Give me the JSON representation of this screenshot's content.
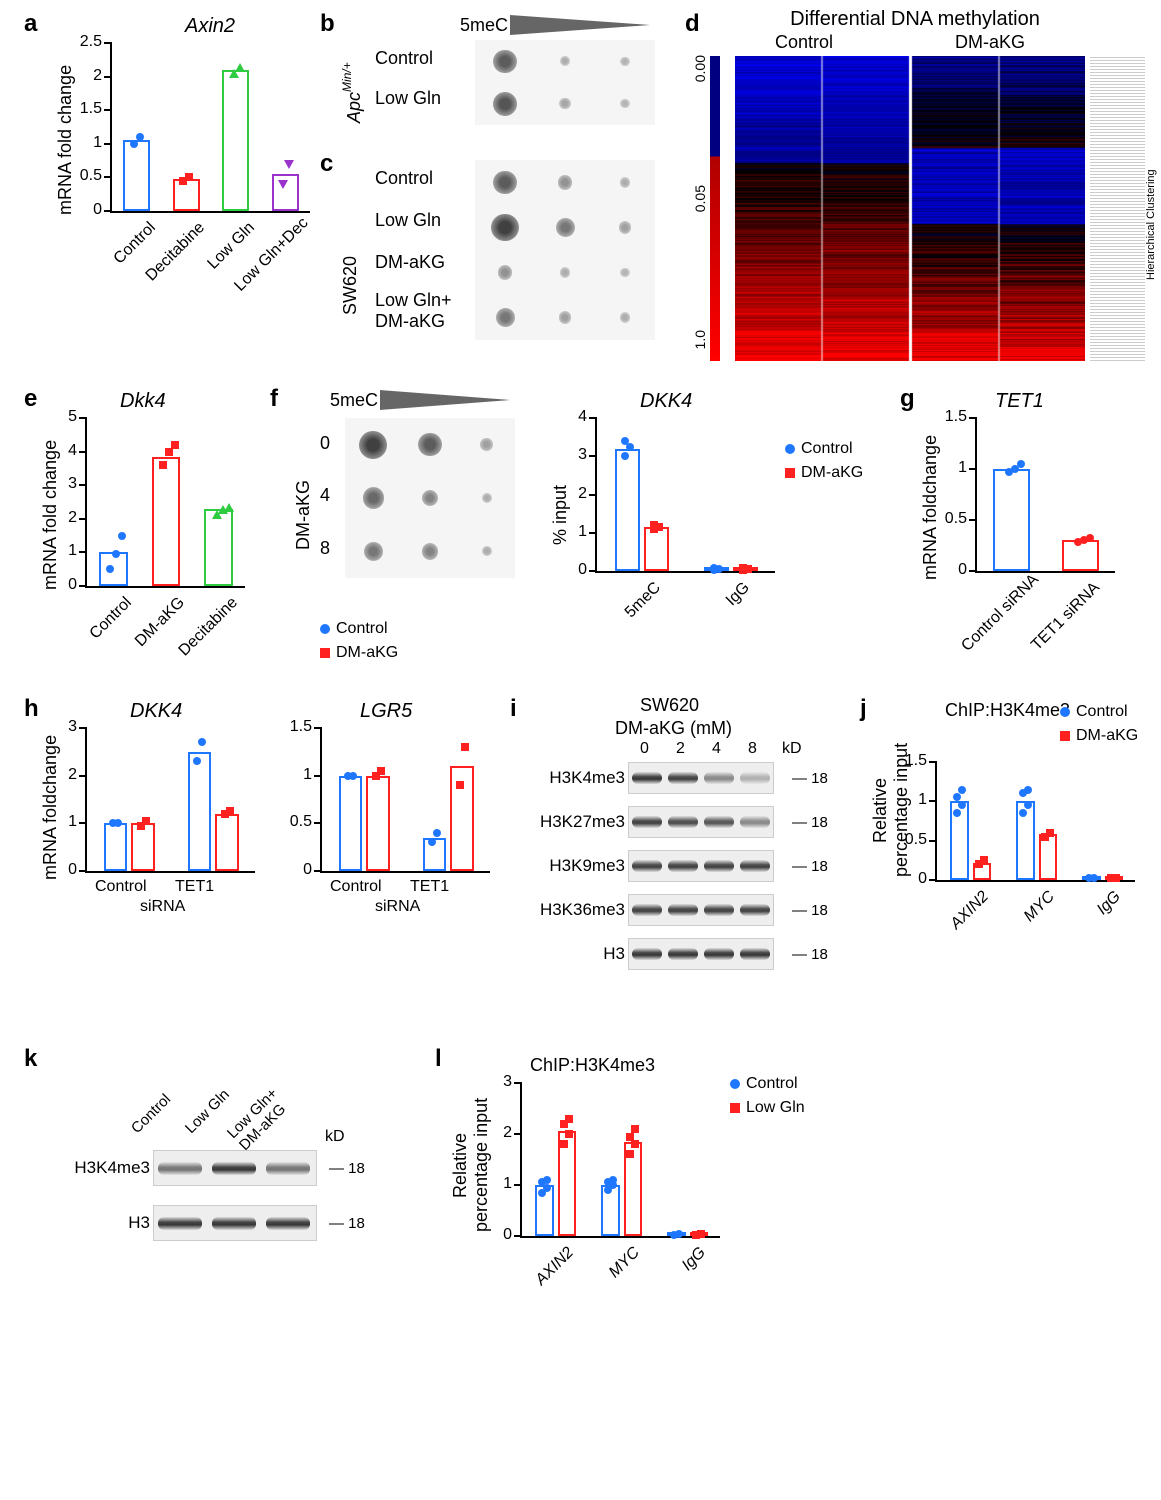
{
  "panels": {
    "a": {
      "label": "a",
      "title": "Axin2",
      "y_label": "mRNA fold change",
      "y_max": 2.5,
      "y_ticks": [
        0.0,
        0.5,
        1.0,
        1.5,
        2.0,
        2.5
      ],
      "categories": [
        "Control",
        "Decitabine",
        "Low Gln",
        "Low Gln+Dec"
      ],
      "values": [
        1.05,
        0.48,
        2.1,
        0.55
      ],
      "colors": [
        "#1f77ff",
        "#ff2020",
        "#2ecc40",
        "#9933cc"
      ],
      "data_points": [
        [
          1.0,
          1.1
        ],
        [
          0.45,
          0.5
        ],
        [
          2.05,
          2.15
        ],
        [
          0.4,
          0.7
        ]
      ],
      "point_shapes": [
        "circle",
        "square",
        "triangle",
        "triangle-down"
      ]
    },
    "b": {
      "label": "b",
      "header": "5meC",
      "row_labels": [
        "Control",
        "Low Gln"
      ],
      "side_label": "Apc^Min/+",
      "dot_intensities": [
        [
          0.7,
          0.1,
          0.05
        ],
        [
          0.75,
          0.15,
          0.05
        ]
      ]
    },
    "c": {
      "label": "c",
      "row_labels": [
        "Control",
        "Low Gln",
        "DM-aKG",
        "Low Gln+\nDM-aKG"
      ],
      "side_label": "SW620",
      "dot_intensities": [
        [
          0.7,
          0.3,
          0.1
        ],
        [
          0.9,
          0.5,
          0.2
        ],
        [
          0.3,
          0.1,
          0.05
        ],
        [
          0.5,
          0.2,
          0.1
        ]
      ]
    },
    "d": {
      "label": "d",
      "title": "Differential DNA methylation",
      "columns": [
        "Control",
        "DM-aKG"
      ],
      "scale_labels": [
        "0.00",
        "0.05",
        "1.0"
      ],
      "dendrogram": "Hierarchical Clustering"
    },
    "e": {
      "label": "e",
      "title": "Dkk4",
      "y_label": "mRNA fold change",
      "y_max": 5,
      "y_ticks": [
        0,
        1,
        2,
        3,
        4,
        5
      ],
      "categories": [
        "Control",
        "DM-aKG",
        "Decitabine"
      ],
      "values": [
        1.0,
        3.85,
        2.3
      ],
      "colors": [
        "#1f77ff",
        "#ff2020",
        "#2ecc40"
      ],
      "data_points": [
        [
          0.5,
          0.95,
          1.5
        ],
        [
          3.6,
          4.0,
          4.2
        ],
        [
          2.15,
          2.3,
          2.35
        ]
      ],
      "point_shapes": [
        "circle",
        "square",
        "triangle"
      ]
    },
    "f": {
      "label": "f",
      "blot_header": "5meC",
      "blot_y_labels": [
        "0",
        "4",
        "8"
      ],
      "blot_y_axis": "DM-aKG",
      "dot_intensities": [
        [
          0.9,
          0.7,
          0.2
        ],
        [
          0.6,
          0.4,
          0.1
        ],
        [
          0.5,
          0.4,
          0.1
        ]
      ],
      "chart_title": "DKK4",
      "chart_y_label": "% input",
      "chart_y_max": 4,
      "chart_y_ticks": [
        0,
        1,
        2,
        3,
        4
      ],
      "chart_categories": [
        "5meC",
        "IgG"
      ],
      "chart_series": [
        "Control",
        "DM-aKG"
      ],
      "chart_values": [
        [
          3.2,
          0.05
        ],
        [
          1.15,
          0.05
        ]
      ],
      "chart_colors": [
        "#1f77ff",
        "#ff2020"
      ],
      "chart_data_points": [
        [
          [
            3.0,
            3.25,
            3.4
          ],
          [
            0.03,
            0.05,
            0.07
          ]
        ],
        [
          [
            1.1,
            1.15,
            1.2
          ],
          [
            0.03,
            0.05,
            0.07
          ]
        ]
      ]
    },
    "g": {
      "label": "g",
      "title": "TET1",
      "y_label": "mRNA foldchange",
      "y_max": 1.5,
      "y_ticks": [
        0.0,
        0.5,
        1.0,
        1.5
      ],
      "categories": [
        "Control siRNA",
        "TET1 siRNA"
      ],
      "values": [
        1.0,
        0.3
      ],
      "colors": [
        "#1f77ff",
        "#ff2020"
      ],
      "data_points": [
        [
          0.97,
          1.0,
          1.05
        ],
        [
          0.28,
          0.3,
          0.32
        ]
      ]
    },
    "h": {
      "label": "h",
      "chart1_title": "DKK4",
      "chart2_title": "LGR5",
      "y_label": "mRNA foldchange",
      "chart1_y_max": 3,
      "chart1_y_ticks": [
        0,
        1,
        2,
        3
      ],
      "chart2_y_max": 1.5,
      "chart2_y_ticks": [
        0.0,
        0.5,
        1.0,
        1.5
      ],
      "x_groups": [
        "Control",
        "TET1"
      ],
      "x_sublabel": "siRNA",
      "series": [
        "Control",
        "DM-aKG"
      ],
      "colors": [
        "#1f77ff",
        "#ff2020"
      ],
      "chart1_values": [
        [
          1.0,
          2.5
        ],
        [
          1.0,
          1.2
        ]
      ],
      "chart2_values": [
        [
          1.0,
          0.35
        ],
        [
          1.0,
          1.1
        ]
      ],
      "chart1_data_points": [
        [
          [
            1.0,
            1.0
          ],
          [
            2.3,
            2.7
          ]
        ],
        [
          [
            0.95,
            1.05
          ],
          [
            1.2,
            1.25
          ]
        ]
      ],
      "chart2_data_points": [
        [
          [
            1.0,
            1.0
          ],
          [
            0.3,
            0.4
          ]
        ],
        [
          [
            1.0,
            1.05
          ],
          [
            0.9,
            1.3
          ]
        ]
      ]
    },
    "i": {
      "label": "i",
      "title": "SW620",
      "subtitle": "DM-aKG (mM)",
      "lane_labels": [
        "0",
        "2",
        "4",
        "8"
      ],
      "row_labels": [
        "H3K4me3",
        "H3K27me3",
        "H3K9me3",
        "H3K36me3",
        "H3"
      ],
      "kd_label": "kD",
      "mw_markers": [
        "18",
        "18",
        "18",
        "18",
        "18"
      ],
      "band_intensities": [
        [
          0.9,
          0.85,
          0.5,
          0.3
        ],
        [
          0.85,
          0.8,
          0.75,
          0.5
        ],
        [
          0.85,
          0.85,
          0.85,
          0.85
        ],
        [
          0.85,
          0.85,
          0.85,
          0.85
        ],
        [
          0.9,
          0.9,
          0.9,
          0.9
        ]
      ]
    },
    "j": {
      "label": "j",
      "title": "ChIP:H3K4me3",
      "y_label": "Relative\npercentage input",
      "y_max": 1.5,
      "y_ticks": [
        0.0,
        0.5,
        1.0,
        1.5
      ],
      "categories": [
        "AXIN2",
        "MYC",
        "IgG"
      ],
      "series": [
        "Control",
        "DM-aKG"
      ],
      "colors": [
        "#1f77ff",
        "#ff2020"
      ],
      "values": [
        [
          1.0,
          1.0,
          0.02
        ],
        [
          0.22,
          0.58,
          0.02
        ]
      ],
      "data_points": [
        [
          [
            0.85,
            0.95,
            1.05,
            1.15
          ],
          [
            0.85,
            0.95,
            1.1,
            1.15
          ],
          [
            0.02,
            0.03
          ]
        ],
        [
          [
            0.2,
            0.25
          ],
          [
            0.55,
            0.6
          ],
          [
            0.02,
            0.03
          ]
        ]
      ]
    },
    "k": {
      "label": "k",
      "lane_labels": [
        "Control",
        "Low Gln",
        "Low Gln+\nDM-aKG"
      ],
      "row_labels": [
        "H3K4me3",
        "H3"
      ],
      "kd_label": "kD",
      "mw_markers": [
        "18",
        "18"
      ],
      "band_intensities": [
        [
          0.6,
          0.9,
          0.6
        ],
        [
          0.9,
          0.9,
          0.9
        ]
      ]
    },
    "l": {
      "label": "l",
      "title": "ChIP:H3K4me3",
      "y_label": "Relative\npercentage input",
      "y_max": 3,
      "y_ticks": [
        0,
        1,
        2,
        3
      ],
      "categories": [
        "AXIN2",
        "MYC",
        "IgG"
      ],
      "series": [
        "Control",
        "Low Gln"
      ],
      "colors": [
        "#1f77ff",
        "#ff2020"
      ],
      "values": [
        [
          1.0,
          1.0,
          0.02
        ],
        [
          2.05,
          1.85,
          0.02
        ]
      ],
      "data_points": [
        [
          [
            0.85,
            0.95,
            1.05,
            1.1
          ],
          [
            0.9,
            1.0,
            1.05,
            1.1
          ],
          [
            0.02,
            0.03
          ]
        ],
        [
          [
            1.8,
            2.0,
            2.2,
            2.3
          ],
          [
            1.6,
            1.8,
            1.95,
            2.1
          ],
          [
            0.02,
            0.03
          ]
        ]
      ]
    }
  }
}
